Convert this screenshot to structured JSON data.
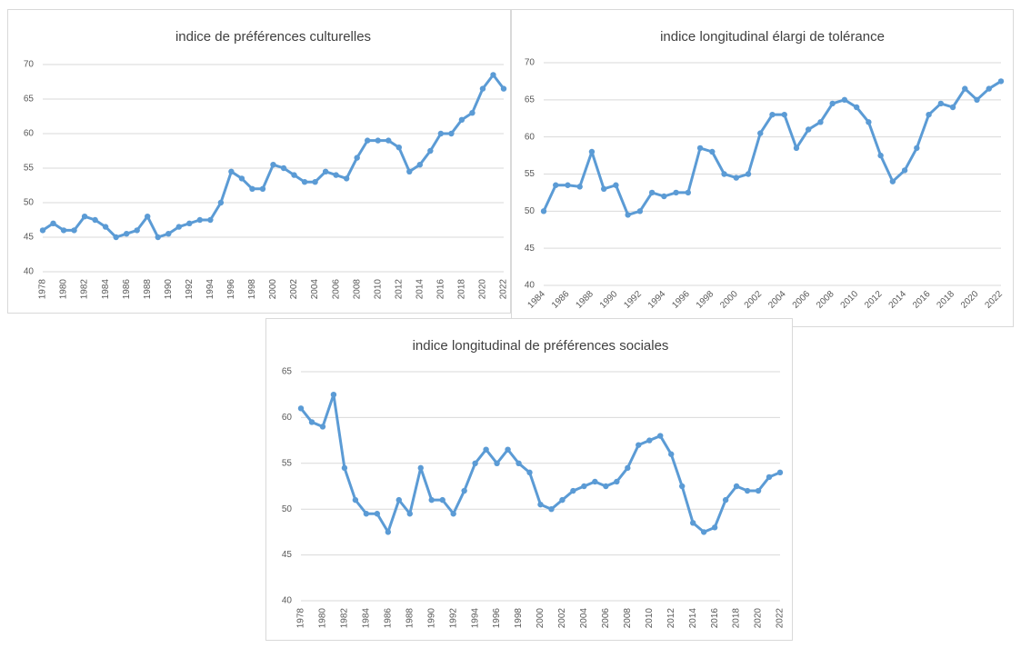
{
  "chart_data": [
    {
      "type": "line",
      "title": "indice de préférences culturelles",
      "color": "#5b9bd5",
      "grid": true,
      "x": [
        1978,
        1979,
        1980,
        1981,
        1982,
        1983,
        1984,
        1985,
        1986,
        1987,
        1988,
        1989,
        1990,
        1991,
        1992,
        1993,
        1994,
        1995,
        1996,
        1997,
        1998,
        1999,
        2000,
        2001,
        2002,
        2003,
        2004,
        2005,
        2006,
        2007,
        2008,
        2009,
        2010,
        2011,
        2012,
        2013,
        2014,
        2015,
        2016,
        2017,
        2018,
        2019,
        2020,
        2021,
        2022
      ],
      "values": [
        46,
        47,
        46,
        46,
        48,
        47.5,
        46.5,
        45,
        45.5,
        46,
        48,
        45,
        45.5,
        46.5,
        47,
        47.5,
        47.5,
        50,
        54.5,
        53.5,
        52,
        52,
        55.5,
        55,
        54,
        53,
        53,
        54.5,
        54,
        53.5,
        56.5,
        59,
        59,
        59,
        58,
        54.5,
        55.5,
        57.5,
        60,
        60,
        62,
        63,
        66.5,
        68.5,
        66.5
      ],
      "xlim": [
        1978,
        2022
      ],
      "xticks": [
        1978,
        1980,
        1982,
        1984,
        1986,
        1988,
        1990,
        1992,
        1994,
        1996,
        1998,
        2000,
        2002,
        2004,
        2006,
        2008,
        2010,
        2012,
        2014,
        2016,
        2018,
        2020,
        2022
      ],
      "ylim": [
        40,
        70
      ],
      "yticks": [
        40,
        45,
        50,
        55,
        60,
        65,
        70
      ]
    },
    {
      "type": "line",
      "title": "indice longitudinal élargi de tolérance",
      "color": "#5b9bd5",
      "grid": true,
      "x": [
        1984,
        1985,
        1986,
        1987,
        1988,
        1989,
        1990,
        1991,
        1992,
        1993,
        1994,
        1995,
        1996,
        1997,
        1998,
        1999,
        2000,
        2001,
        2002,
        2003,
        2004,
        2005,
        2006,
        2007,
        2008,
        2009,
        2010,
        2011,
        2012,
        2013,
        2014,
        2015,
        2016,
        2017,
        2018,
        2019,
        2020,
        2021,
        2022
      ],
      "values": [
        50,
        53.5,
        53.5,
        53.3,
        58,
        53,
        53.5,
        49.5,
        50,
        52.5,
        52,
        52.5,
        52.5,
        58.5,
        58,
        55,
        54.5,
        55,
        60.5,
        63,
        63,
        58.5,
        61,
        62,
        64.5,
        65,
        64,
        62,
        57.5,
        54,
        55.5,
        58.5,
        63,
        64.5,
        64,
        66.5,
        65,
        66.5,
        67.5
      ],
      "xlim": [
        1984,
        2022
      ],
      "xticks": [
        1984,
        1986,
        1988,
        1990,
        1992,
        1994,
        1996,
        1998,
        2000,
        2002,
        2004,
        2006,
        2008,
        2010,
        2012,
        2014,
        2016,
        2018,
        2020,
        2022
      ],
      "ylim": [
        40,
        70
      ],
      "yticks": [
        40,
        45,
        50,
        55,
        60,
        65,
        70
      ]
    },
    {
      "type": "line",
      "title": "indice longitudinal de préférences sociales",
      "color": "#5b9bd5",
      "grid": true,
      "x": [
        1978,
        1979,
        1980,
        1981,
        1982,
        1983,
        1984,
        1985,
        1986,
        1987,
        1988,
        1989,
        1990,
        1991,
        1992,
        1993,
        1994,
        1995,
        1996,
        1997,
        1998,
        1999,
        2000,
        2001,
        2002,
        2003,
        2004,
        2005,
        2006,
        2007,
        2008,
        2009,
        2010,
        2011,
        2012,
        2013,
        2014,
        2015,
        2016,
        2017,
        2018,
        2019,
        2020,
        2021,
        2022
      ],
      "values": [
        61,
        59.5,
        59,
        62.5,
        54.5,
        51,
        49.5,
        49.5,
        47.5,
        51,
        49.5,
        54.5,
        51,
        51,
        49.5,
        52,
        55,
        56.5,
        55,
        56.5,
        55,
        54,
        50.5,
        50,
        51,
        52,
        52.5,
        53,
        52.5,
        53,
        54.5,
        57,
        57.5,
        58,
        56,
        52.5,
        48.5,
        47.5,
        48,
        51,
        52.5,
        52,
        52,
        53.5,
        54
      ],
      "xlim": [
        1978,
        2022
      ],
      "xticks": [
        1978,
        1980,
        1982,
        1984,
        1986,
        1988,
        1990,
        1992,
        1994,
        1996,
        1998,
        2000,
        2002,
        2004,
        2006,
        2008,
        2010,
        2012,
        2014,
        2016,
        2018,
        2020,
        2022
      ],
      "ylim": [
        40,
        65
      ],
      "yticks": [
        40,
        45,
        50,
        55,
        60,
        65
      ]
    }
  ]
}
